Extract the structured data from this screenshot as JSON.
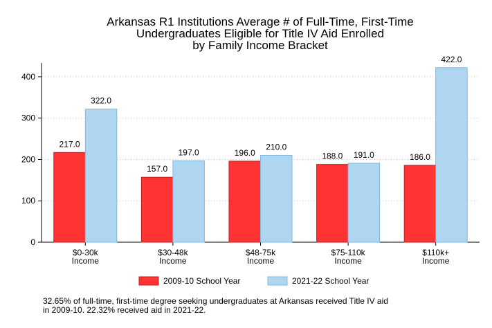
{
  "chart_data": {
    "type": "bar",
    "title_lines": [
      "Arkansas R1 Institutions Average # of Full-Time, First-Time",
      "Undergraduates Eligible for Title IV Aid Enrolled",
      "by Family Income Bracket"
    ],
    "categories": [
      [
        "$0-30k",
        "Income"
      ],
      [
        "$30-48k",
        "Income"
      ],
      [
        "$48-75k",
        "Income"
      ],
      [
        "$75-110k",
        "Income"
      ],
      [
        "$110k+",
        "Income"
      ]
    ],
    "series": [
      {
        "name": "2009-10 School Year",
        "color": "#ff3333",
        "stroke": "#b22222",
        "values": [
          217.0,
          157.0,
          196.0,
          188.0,
          186.0
        ],
        "labels": [
          "217.0",
          "157.0",
          "196.0",
          "188.0",
          "186.0"
        ]
      },
      {
        "name": "2021-22 School Year",
        "color": "#aed6f1",
        "stroke": "#7fb8e0",
        "values": [
          322.0,
          197.0,
          210.0,
          191.0,
          422.0
        ],
        "labels": [
          "322.0",
          "197.0",
          "210.0",
          "191.0",
          "422.0"
        ]
      }
    ],
    "y_ticks": [
      0,
      100,
      200,
      300,
      400
    ],
    "ylim": [
      0,
      430
    ],
    "grid": true,
    "legend_position": "bottom"
  },
  "note": "32.65% of full-time, first-time degree seeking undergraduates at Arkansas received Title IV aid\nin 2009-10. 22.32% received aid in 2021-22."
}
